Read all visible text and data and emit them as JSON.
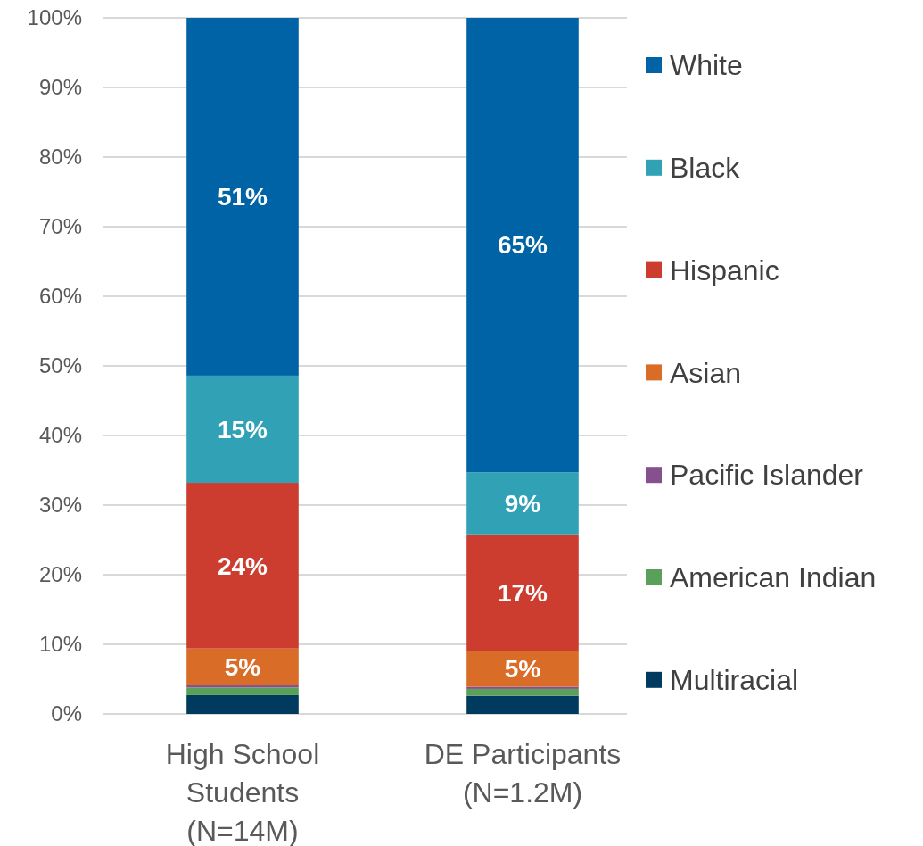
{
  "chart_data": {
    "type": "bar",
    "stacked": true,
    "categories": [
      "High School Students (N=14M)",
      "DE Participants (N=1.2M)"
    ],
    "ylim": [
      0,
      100
    ],
    "yticks": [
      {
        "value": 0,
        "label": "0%"
      },
      {
        "value": 10,
        "label": "10%"
      },
      {
        "value": 20,
        "label": "20%"
      },
      {
        "value": 30,
        "label": "30%"
      },
      {
        "value": 40,
        "label": "40%"
      },
      {
        "value": 50,
        "label": "50%"
      },
      {
        "value": 60,
        "label": "60%"
      },
      {
        "value": 70,
        "label": "70%"
      },
      {
        "value": 80,
        "label": "80%"
      },
      {
        "value": 90,
        "label": "90%"
      },
      {
        "value": 100,
        "label": "100%"
      }
    ],
    "grid": "y",
    "legend": "right",
    "series": [
      {
        "name": "Multiracial",
        "color": "#003b5f",
        "values": [
          2.7,
          2.6
        ],
        "value_labels": [
          null,
          null
        ]
      },
      {
        "name": "American Indian",
        "color": "#5aa05a",
        "values": [
          1.1,
          1.0
        ],
        "value_labels": [
          null,
          null
        ]
      },
      {
        "name": "Pacific Islander",
        "color": "#85508d",
        "values": [
          0.3,
          0.3
        ],
        "value_labels": [
          null,
          null
        ]
      },
      {
        "name": "Asian",
        "color": "#d96c27",
        "values": [
          5.3,
          5.2
        ],
        "value_labels": [
          "5%",
          "5%"
        ]
      },
      {
        "name": "Hispanic",
        "color": "#cc3d2f",
        "values": [
          23.8,
          16.7
        ],
        "value_labels": [
          "24%",
          "17%"
        ]
      },
      {
        "name": "Black",
        "color": "#31a2b5",
        "values": [
          15.4,
          8.9
        ],
        "value_labels": [
          "15%",
          "9%"
        ]
      },
      {
        "name": "White",
        "color": "#0063a6",
        "values": [
          51.4,
          65.3
        ],
        "value_labels": [
          "51%",
          "65%"
        ]
      }
    ]
  }
}
